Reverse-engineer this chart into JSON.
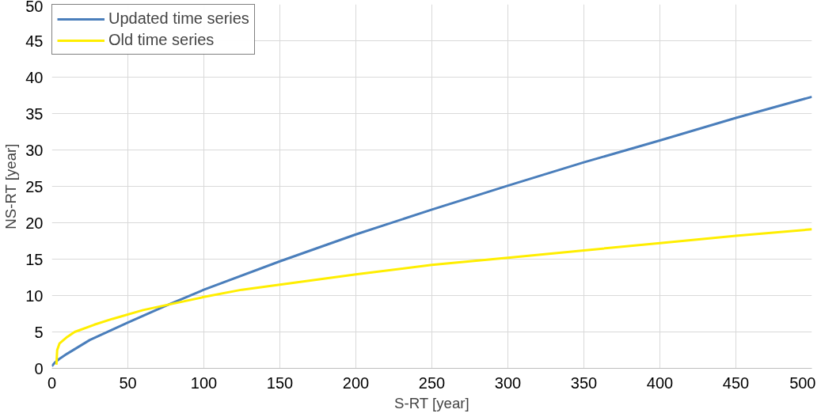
{
  "chart_data": {
    "type": "line",
    "xlabel": "S-RT [year]",
    "ylabel": "NS-RT [year]",
    "xlim": [
      0,
      500
    ],
    "ylim": [
      0,
      50
    ],
    "xticks": [
      0,
      50,
      100,
      150,
      200,
      250,
      300,
      350,
      400,
      450,
      500
    ],
    "yticks": [
      0,
      5,
      10,
      15,
      20,
      25,
      30,
      35,
      40,
      45,
      50
    ],
    "grid": true,
    "legend": "top left",
    "marker": "none",
    "line_style": "solid",
    "series": [
      {
        "name": "Updated time series",
        "color": "#4a7ebb",
        "x": [
          0,
          2,
          5,
          10,
          25,
          50,
          75,
          100,
          150,
          200,
          250,
          300,
          350,
          400,
          450,
          500
        ],
        "values": [
          0.3,
          0.8,
          1.3,
          2.0,
          3.9,
          6.3,
          8.6,
          10.8,
          14.7,
          18.4,
          21.8,
          25.1,
          28.3,
          31.3,
          34.4,
          37.3
        ]
      },
      {
        "name": "Old time series",
        "color": "#ffee00",
        "x": [
          3,
          3.5,
          5,
          10,
          15,
          28,
          40,
          60,
          80,
          100,
          125,
          150,
          200,
          250,
          300,
          350,
          400,
          450,
          500
        ],
        "values": [
          0.5,
          2.5,
          3.4,
          4.3,
          5.0,
          6.0,
          6.8,
          8.0,
          8.9,
          9.8,
          10.8,
          11.5,
          12.9,
          14.2,
          15.2,
          16.2,
          17.2,
          18.2,
          19.1
        ]
      }
    ]
  }
}
